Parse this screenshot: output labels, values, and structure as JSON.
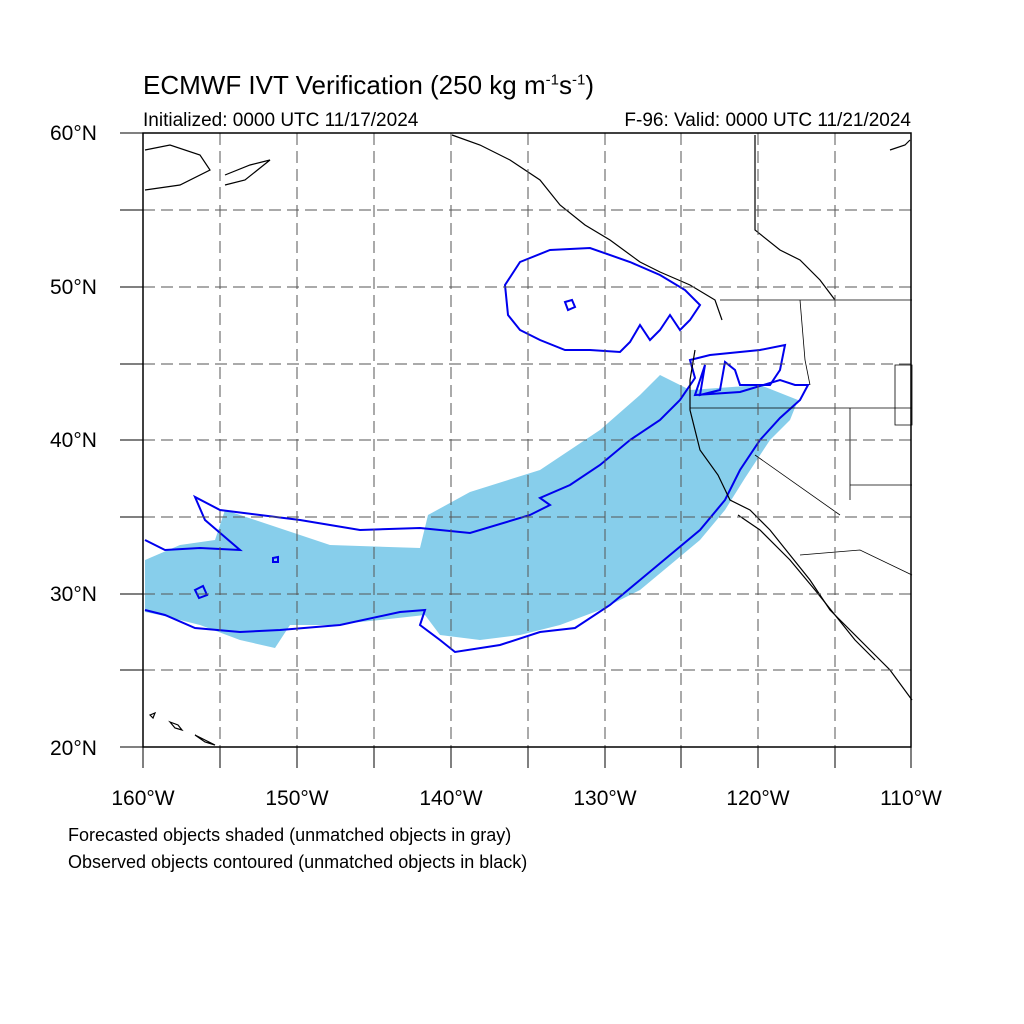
{
  "title": {
    "main": "ECMWF IVT Verification (250 kg m",
    "sup1": "-1",
    "mid": "s",
    "sup2": "-1",
    "end": ")"
  },
  "init_text": "Initialized: 0000 UTC 11/17/2024",
  "valid_text": "F-96: Valid: 0000 UTC 11/21/2024",
  "lat_labels": [
    "60°N",
    "50°N",
    "40°N",
    "30°N",
    "20°N"
  ],
  "lon_labels": [
    "160°W",
    "150°W",
    "140°W",
    "130°W",
    "120°W",
    "110°W"
  ],
  "notes": {
    "forecast": "Forecasted objects shaded (unmatched objects in gray)",
    "observed": "Observed objects contoured (unmatched objects in black)"
  },
  "colors": {
    "forecast_fill": "#87ceeb",
    "observed_contour": "#0000ee",
    "coastline": "#000000",
    "grid": "#555555"
  },
  "map": {
    "lon_range": [
      -160,
      -110
    ],
    "lat_range": [
      20,
      60
    ],
    "grid_spacing_deg": 5,
    "projection": "cylindrical-equidistant"
  }
}
